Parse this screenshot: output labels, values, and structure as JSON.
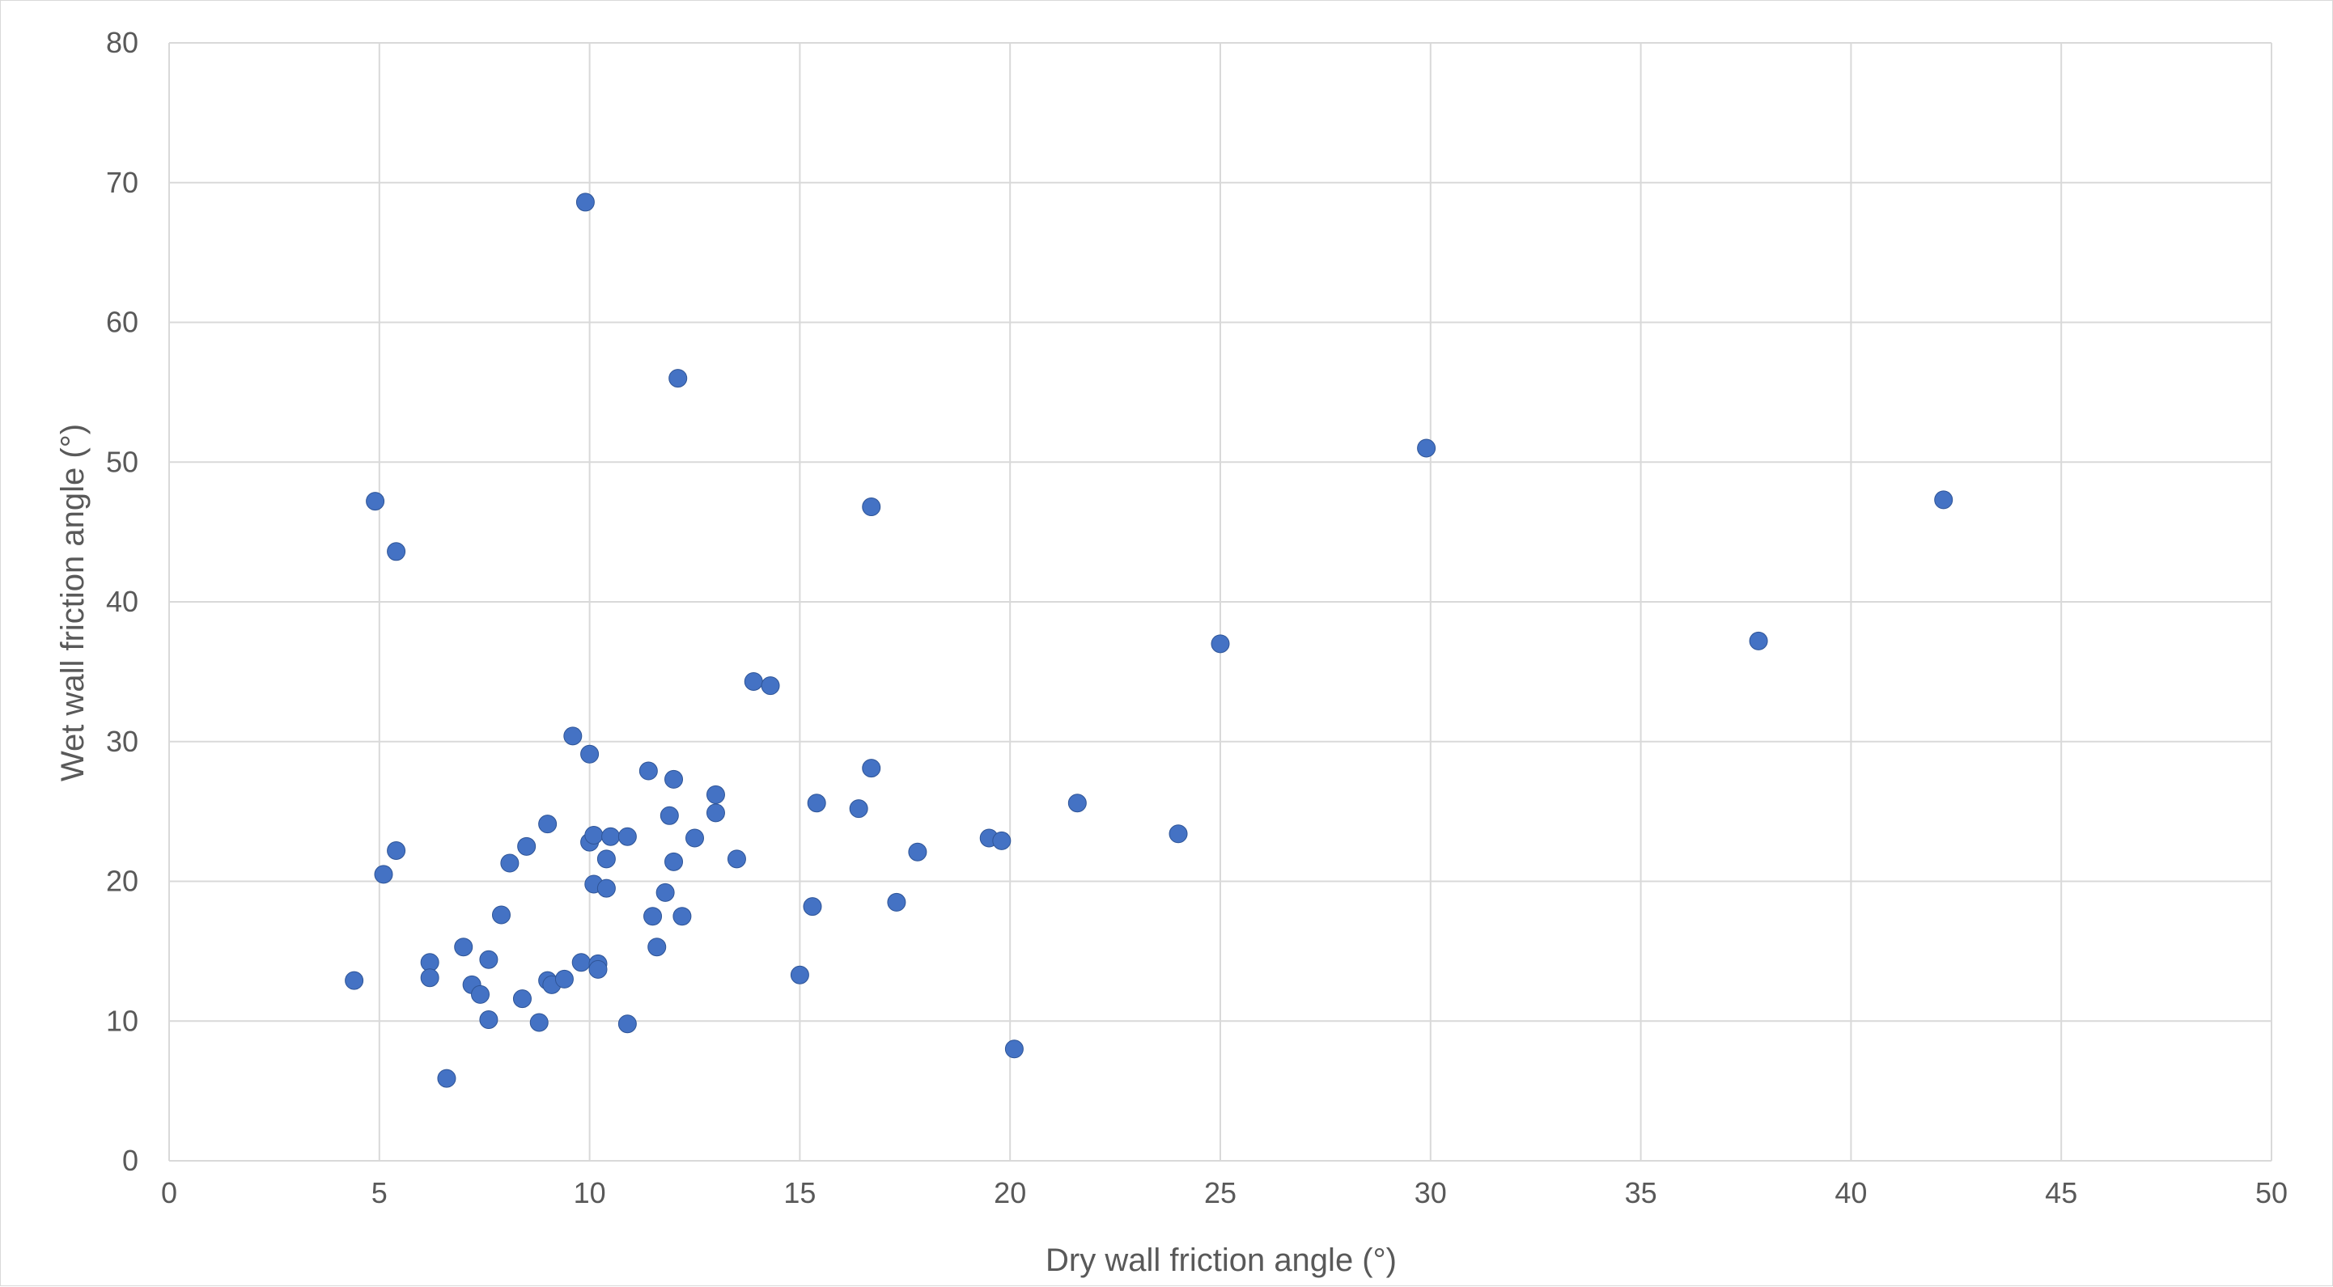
{
  "chart_data": {
    "type": "scatter",
    "title": "",
    "xlabel": "Dry wall friction angle (°)",
    "ylabel": "Wet wall friction angle (°)",
    "xlim": [
      0,
      50
    ],
    "ylim": [
      0,
      80
    ],
    "x_ticks": [
      "0",
      "5",
      "10",
      "15",
      "20",
      "25",
      "30",
      "35",
      "40",
      "45",
      "50"
    ],
    "y_ticks": [
      "0",
      "10",
      "20",
      "30",
      "40",
      "50",
      "60",
      "70",
      "80"
    ],
    "grid": true,
    "legend": "none",
    "marker_color": "#4472c4",
    "series": [
      {
        "points": [
          [
            4.4,
            12.9
          ],
          [
            4.9,
            47.2
          ],
          [
            5.1,
            20.5
          ],
          [
            5.4,
            43.6
          ],
          [
            5.4,
            22.2
          ],
          [
            6.2,
            14.2
          ],
          [
            6.2,
            13.1
          ],
          [
            6.6,
            5.9
          ],
          [
            7.0,
            15.3
          ],
          [
            7.2,
            12.6
          ],
          [
            7.4,
            11.9
          ],
          [
            7.6,
            14.4
          ],
          [
            7.6,
            10.1
          ],
          [
            7.9,
            17.6
          ],
          [
            8.1,
            21.3
          ],
          [
            8.4,
            11.6
          ],
          [
            8.5,
            22.5
          ],
          [
            8.8,
            9.9
          ],
          [
            9.0,
            24.1
          ],
          [
            9.0,
            12.9
          ],
          [
            9.1,
            12.6
          ],
          [
            9.4,
            13.0
          ],
          [
            9.6,
            30.4
          ],
          [
            9.8,
            14.2
          ],
          [
            9.9,
            68.6
          ],
          [
            10.0,
            22.8
          ],
          [
            10.0,
            29.1
          ],
          [
            10.1,
            23.3
          ],
          [
            10.1,
            19.8
          ],
          [
            10.2,
            14.1
          ],
          [
            10.2,
            13.7
          ],
          [
            10.4,
            19.5
          ],
          [
            10.4,
            21.6
          ],
          [
            10.5,
            23.2
          ],
          [
            10.9,
            9.8
          ],
          [
            10.9,
            23.2
          ],
          [
            11.4,
            27.9
          ],
          [
            11.5,
            17.5
          ],
          [
            11.6,
            15.3
          ],
          [
            11.8,
            19.2
          ],
          [
            11.9,
            24.7
          ],
          [
            12.0,
            21.4
          ],
          [
            12.0,
            27.3
          ],
          [
            12.1,
            56.0
          ],
          [
            12.2,
            17.5
          ],
          [
            12.5,
            23.1
          ],
          [
            13.0,
            24.9
          ],
          [
            13.0,
            26.2
          ],
          [
            13.5,
            21.6
          ],
          [
            13.9,
            34.3
          ],
          [
            14.3,
            34.0
          ],
          [
            15.0,
            13.3
          ],
          [
            15.3,
            18.2
          ],
          [
            15.4,
            25.6
          ],
          [
            16.4,
            25.2
          ],
          [
            16.7,
            28.1
          ],
          [
            16.7,
            46.8
          ],
          [
            17.3,
            18.5
          ],
          [
            17.8,
            22.1
          ],
          [
            19.5,
            23.1
          ],
          [
            19.8,
            22.9
          ],
          [
            20.1,
            8.0
          ],
          [
            21.6,
            25.6
          ],
          [
            24.0,
            23.4
          ],
          [
            25.0,
            37.0
          ],
          [
            29.9,
            51.0
          ],
          [
            37.8,
            37.2
          ],
          [
            42.2,
            47.3
          ]
        ]
      }
    ]
  }
}
